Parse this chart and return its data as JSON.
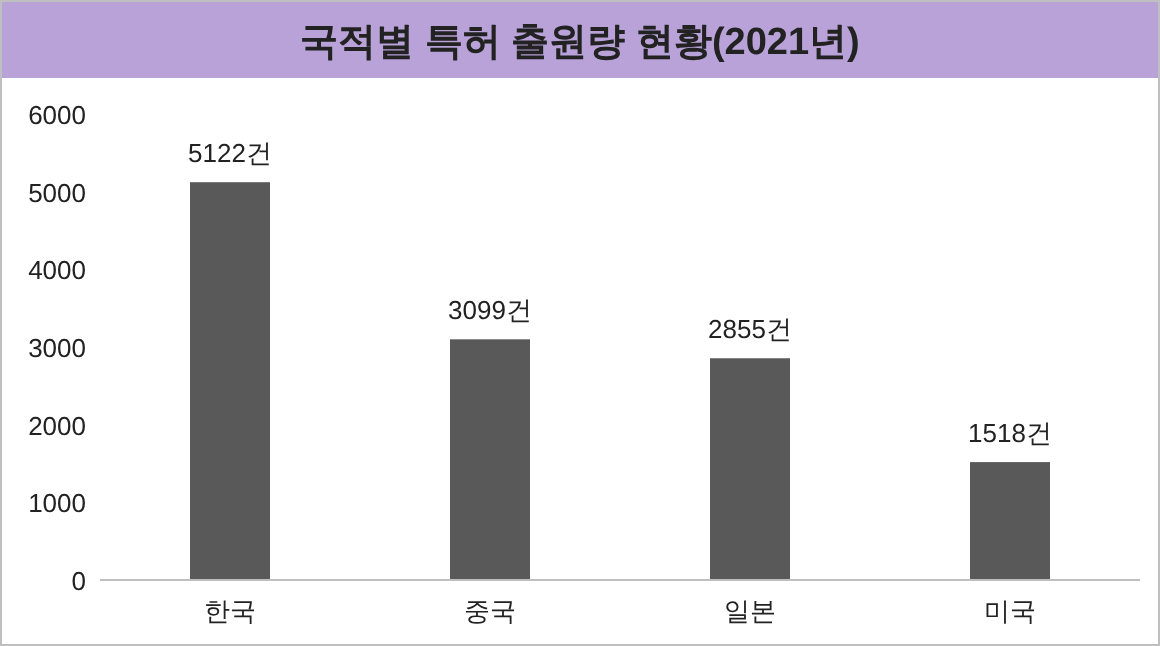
{
  "chart_data": {
    "type": "bar",
    "title": "국적별 특허 출원량 현황(2021년)",
    "categories": [
      "한국",
      "중국",
      "일본",
      "미국"
    ],
    "values": [
      5122,
      3099,
      2855,
      1518
    ],
    "value_labels": [
      "5122건",
      "3099건",
      "2855건",
      "1518건"
    ],
    "color": "#595959",
    "ylim": [
      0,
      6000
    ],
    "yticks": [
      0,
      1000,
      2000,
      3000,
      4000,
      5000,
      6000
    ],
    "grid": false
  }
}
